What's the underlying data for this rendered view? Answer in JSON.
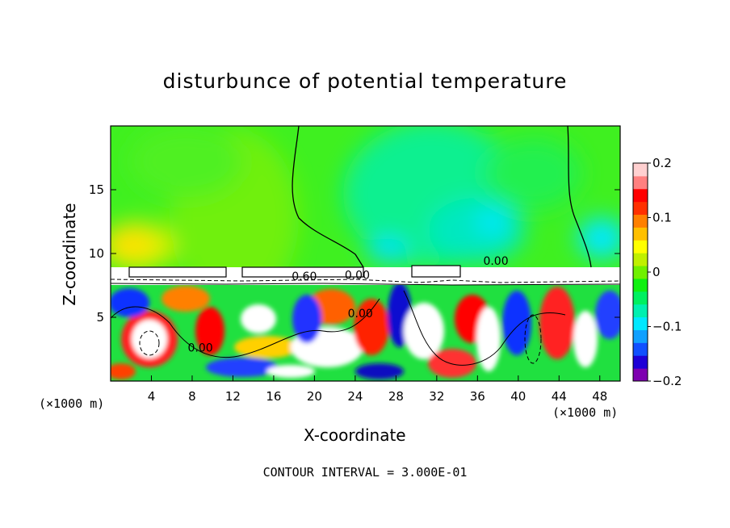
{
  "chart_data": {
    "type": "heatmap",
    "title": "disturbunce of potential temperature",
    "xlabel": "X-coordinate",
    "ylabel": "Z-coordinate",
    "x_unit_left": "(×1000 m)",
    "x_unit_right": "(×1000 m)",
    "footer": "CONTOUR INTERVAL = 3.000E-01",
    "xlim": [
      0,
      50
    ],
    "ylim": [
      0,
      20
    ],
    "x_ticks": [
      4,
      8,
      12,
      16,
      20,
      24,
      28,
      32,
      36,
      40,
      44,
      48
    ],
    "y_ticks": [
      5,
      10,
      15
    ],
    "colorbar": {
      "range": [
        -0.2,
        0.2
      ],
      "tick_values": [
        0.2,
        0.1,
        0,
        -0.1,
        -0.2
      ],
      "tick_labels": [
        "0.2",
        "0.1",
        "0",
        "−0.1",
        "−0.2"
      ],
      "colors": [
        "#7e00b0",
        "#1e00d6",
        "#1050ff",
        "#10a0ff",
        "#00e8ff",
        "#00f0b0",
        "#00f060",
        "#10f010",
        "#70f000",
        "#c0f000",
        "#ffff00",
        "#ffc000",
        "#ff8000",
        "#ff3000",
        "#ff0000",
        "#ff8080",
        "#ffd0d0"
      ]
    },
    "contour_labels": [
      {
        "text": "0.60",
        "x": 19.0,
        "z": 7.9
      },
      {
        "text": "0.00",
        "x": 24.2,
        "z": 8.0
      },
      {
        "text": "0.00",
        "x": 37.8,
        "z": 9.1
      },
      {
        "text": "0.00",
        "x": 24.5,
        "z": 5.0
      },
      {
        "text": "0.00",
        "x": 8.8,
        "z": 2.3
      }
    ]
  }
}
